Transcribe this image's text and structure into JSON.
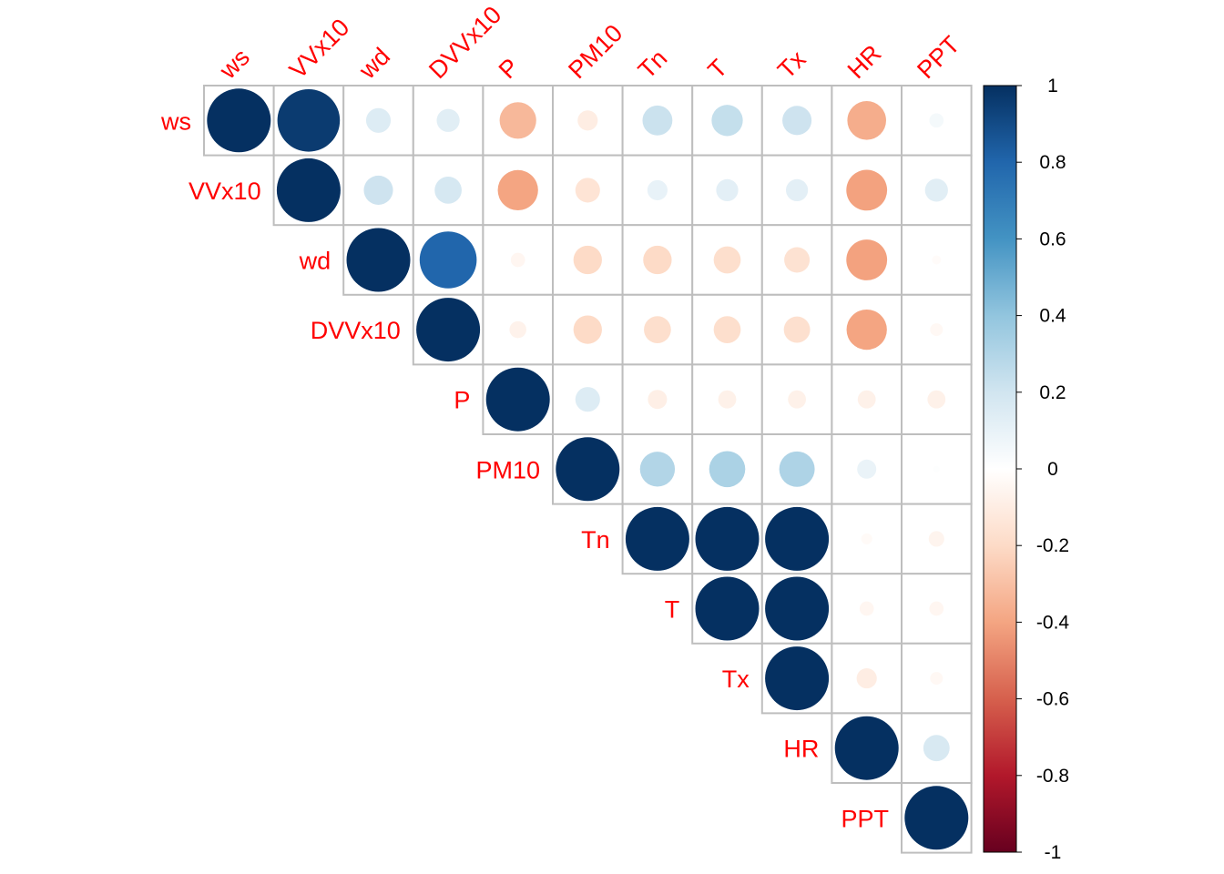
{
  "chart_data": {
    "type": "heatmap",
    "style": "upper-triangle correlation circles",
    "variables": [
      "ws",
      "VVx10",
      "wd",
      "DVVx10",
      "P",
      "PM10",
      "Tn",
      "T",
      "Tx",
      "HR",
      "PPT"
    ],
    "label_color": "#ff0000",
    "matrix": [
      [
        1.0,
        0.96,
        0.15,
        0.13,
        -0.33,
        -0.1,
        0.22,
        0.24,
        0.21,
        -0.37,
        0.05
      ],
      [
        null,
        1.0,
        0.21,
        0.18,
        -0.4,
        -0.15,
        0.1,
        0.12,
        0.12,
        -0.41,
        0.13
      ],
      [
        null,
        null,
        1.0,
        0.8,
        -0.05,
        -0.2,
        -0.2,
        -0.18,
        -0.16,
        -0.41,
        -0.02
      ],
      [
        null,
        null,
        null,
        1.0,
        -0.07,
        -0.2,
        -0.18,
        -0.18,
        -0.17,
        -0.4,
        -0.04
      ],
      [
        null,
        null,
        null,
        null,
        1.0,
        0.15,
        -0.09,
        -0.08,
        -0.08,
        -0.08,
        -0.08
      ],
      [
        null,
        null,
        null,
        null,
        null,
        1.0,
        0.3,
        0.32,
        0.31,
        0.09,
        0.01
      ],
      [
        null,
        null,
        null,
        null,
        null,
        null,
        1.0,
        1.0,
        1.0,
        -0.03,
        -0.06
      ],
      [
        null,
        null,
        null,
        null,
        null,
        null,
        null,
        1.0,
        1.0,
        -0.05,
        -0.05
      ],
      [
        null,
        null,
        null,
        null,
        null,
        null,
        null,
        null,
        1.0,
        -0.1,
        -0.04
      ],
      [
        null,
        null,
        null,
        null,
        null,
        null,
        null,
        null,
        null,
        1.0,
        0.17
      ],
      [
        null,
        null,
        null,
        null,
        null,
        null,
        null,
        null,
        null,
        null,
        1.0
      ]
    ],
    "colorbar": {
      "range": [
        -1,
        1
      ],
      "tick_labels": [
        "1",
        "0.8",
        "0.6",
        "0.4",
        "0.2",
        "0",
        "-0.2",
        "-0.4",
        "-0.6",
        "-0.8",
        "-1"
      ],
      "tick_values": [
        1,
        0.8,
        0.6,
        0.4,
        0.2,
        0,
        -0.2,
        -0.4,
        -0.6,
        -0.8,
        -1
      ],
      "colors": [
        "#67001F",
        "#B2182B",
        "#D6604D",
        "#F4A582",
        "#FDDBC7",
        "#FFFFFF",
        "#D1E5F0",
        "#92C5DE",
        "#4393C3",
        "#2166AC",
        "#053061"
      ]
    }
  }
}
